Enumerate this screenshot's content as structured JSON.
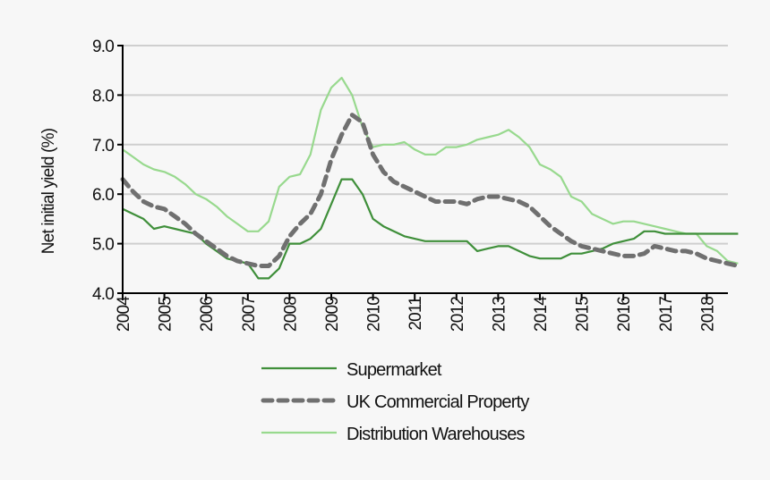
{
  "chart_data": {
    "type": "line",
    "title": "",
    "xlabel": "",
    "ylabel": "Net initial yield (%)",
    "ylim": [
      4.0,
      9.0
    ],
    "yticks": [
      "4.0",
      "5.0",
      "6.0",
      "7.0",
      "8.0",
      "9.0"
    ],
    "xticks": [
      "2004",
      "2005",
      "2006",
      "2007",
      "2008",
      "2009",
      "2010",
      "2011",
      "2012",
      "2013",
      "2014",
      "2015",
      "2016",
      "2017",
      "2018"
    ],
    "x_frequency": "quarterly, 2004 Q1 – 2018 Q4",
    "grid": "horizontal",
    "legend": "bottom",
    "series": [
      {
        "name": "Supermarket",
        "color": "#3f8f3a",
        "style": "solid",
        "values": [
          5.7,
          5.6,
          5.5,
          5.3,
          5.35,
          5.3,
          5.25,
          5.2,
          5.0,
          4.85,
          4.7,
          4.65,
          4.6,
          4.3,
          4.3,
          4.5,
          5.0,
          5.0,
          5.1,
          5.3,
          5.8,
          6.3,
          6.3,
          6.0,
          5.5,
          5.35,
          5.25,
          5.15,
          5.1,
          5.05,
          5.05,
          5.05,
          5.05,
          5.05,
          4.85,
          4.9,
          4.95,
          4.95,
          4.85,
          4.75,
          4.7,
          4.7,
          4.7,
          4.8,
          4.8,
          4.85,
          4.9,
          5.0,
          5.05,
          5.1,
          5.25,
          5.25,
          5.2,
          5.2,
          5.2,
          5.2,
          5.2,
          5.2,
          5.2,
          5.2
        ]
      },
      {
        "name": "UK Commercial Property",
        "color": "#707070",
        "style": "dashed",
        "values": [
          6.3,
          6.05,
          5.85,
          5.75,
          5.7,
          5.55,
          5.4,
          5.2,
          5.05,
          4.9,
          4.75,
          4.65,
          4.6,
          4.55,
          4.55,
          4.75,
          5.15,
          5.4,
          5.6,
          6.0,
          6.7,
          7.2,
          7.6,
          7.45,
          6.8,
          6.45,
          6.25,
          6.15,
          6.05,
          5.95,
          5.85,
          5.85,
          5.85,
          5.8,
          5.9,
          5.95,
          5.95,
          5.9,
          5.85,
          5.75,
          5.55,
          5.35,
          5.2,
          5.05,
          4.95,
          4.9,
          4.85,
          4.8,
          4.75,
          4.75,
          4.8,
          4.95,
          4.9,
          4.85,
          4.85,
          4.8,
          4.7,
          4.65,
          4.6,
          4.55
        ]
      },
      {
        "name": "Distribution Warehouses",
        "color": "#98d98e",
        "style": "solid",
        "values": [
          6.9,
          6.75,
          6.6,
          6.5,
          6.45,
          6.35,
          6.2,
          6.0,
          5.9,
          5.75,
          5.55,
          5.4,
          5.25,
          5.25,
          5.45,
          6.15,
          6.35,
          6.4,
          6.8,
          7.7,
          8.15,
          8.35,
          8.0,
          7.35,
          6.95,
          7.0,
          7.0,
          7.05,
          6.9,
          6.8,
          6.8,
          6.95,
          6.95,
          7.0,
          7.1,
          7.15,
          7.2,
          7.3,
          7.15,
          6.95,
          6.6,
          6.5,
          6.35,
          5.95,
          5.85,
          5.6,
          5.5,
          5.4,
          5.45,
          5.45,
          5.4,
          5.35,
          5.3,
          5.25,
          5.2,
          5.2,
          4.95,
          4.85,
          4.65,
          4.6
        ]
      }
    ]
  }
}
